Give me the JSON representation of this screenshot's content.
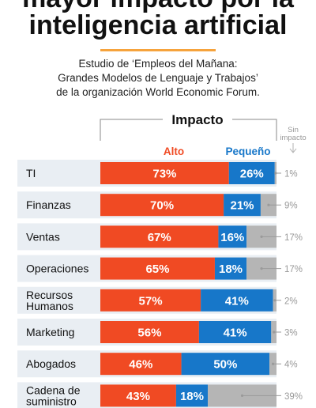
{
  "title": {
    "line1": "mayor impacto por la",
    "line2": "inteligencia artificial"
  },
  "subtitle": {
    "line1": "Estudio de ‘Empleos del Mañana:",
    "line2": "Grandes Modelos de Lenguaje y Trabajos’",
    "line3": "de la organización World Economic Forum."
  },
  "colors": {
    "alto": "#f04a23",
    "pequeno": "#1777c9",
    "sin_impacto": "#b5b5b5",
    "row_bg": "#e9eef3",
    "accent": "#f6a33c"
  },
  "chart_data": {
    "type": "bar",
    "stacked": true,
    "orientation": "horizontal",
    "header": "Impacto",
    "categories": [
      [
        "TI"
      ],
      [
        "Finanzas"
      ],
      [
        "Ventas"
      ],
      [
        "Operaciones"
      ],
      [
        "Recursos",
        "Humanos"
      ],
      [
        "Marketing"
      ],
      [
        "Abogados"
      ],
      [
        "Cadena de",
        "suministro"
      ]
    ],
    "series": [
      {
        "name": "Alto",
        "values": [
          73,
          70,
          67,
          65,
          57,
          56,
          46,
          43
        ]
      },
      {
        "name": "Pequeño",
        "values": [
          26,
          21,
          16,
          18,
          41,
          41,
          50,
          18
        ]
      },
      {
        "name": "Sin impacto",
        "values": [
          1,
          9,
          17,
          17,
          2,
          3,
          4,
          39
        ]
      }
    ],
    "value_suffix": "%",
    "xlim": [
      0,
      100
    ]
  }
}
